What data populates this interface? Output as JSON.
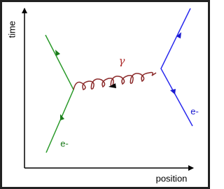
{
  "axes": {
    "y_label": "time",
    "x_label": "position"
  },
  "photon": {
    "label": "γ"
  },
  "electrons": [
    {
      "label": "e-"
    },
    {
      "label": "e-"
    }
  ]
}
